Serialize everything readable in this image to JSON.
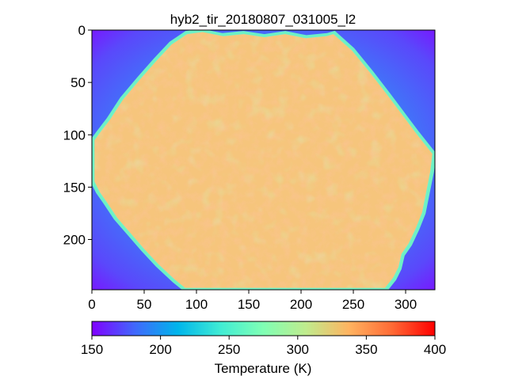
{
  "chart_data": {
    "type": "heatmap",
    "title": "hyb2_tir_20180807_031005_l2",
    "xlabel": "",
    "ylabel": "",
    "x_ticks": [
      0,
      50,
      100,
      150,
      200,
      250,
      300
    ],
    "y_ticks": [
      0,
      50,
      100,
      150,
      200
    ],
    "xlim": [
      0,
      328
    ],
    "ylim": [
      248,
      0
    ],
    "colormap": "rainbow",
    "colorbar": {
      "label": "Temperature (K)",
      "range": [
        150,
        400
      ],
      "ticks": [
        150,
        200,
        250,
        300,
        350,
        400
      ],
      "orientation": "horizontal",
      "placement": "bottom"
    },
    "background_temperature_center": 225,
    "background_temperature_corner": 160,
    "asteroid_temperature_typical": 325,
    "asteroid_outline": [
      [
        90,
        2
      ],
      [
        105,
        0
      ],
      [
        125,
        4
      ],
      [
        145,
        2
      ],
      [
        165,
        5
      ],
      [
        185,
        2
      ],
      [
        205,
        6
      ],
      [
        225,
        4
      ],
      [
        232,
        2
      ],
      [
        250,
        18
      ],
      [
        268,
        40
      ],
      [
        285,
        62
      ],
      [
        300,
        82
      ],
      [
        312,
        98
      ],
      [
        320,
        108
      ],
      [
        328,
        118
      ],
      [
        326,
        135
      ],
      [
        322,
        155
      ],
      [
        318,
        175
      ],
      [
        312,
        190
      ],
      [
        305,
        205
      ],
      [
        298,
        215
      ],
      [
        295,
        228
      ],
      [
        290,
        238
      ],
      [
        282,
        248
      ],
      [
        260,
        248
      ],
      [
        240,
        248
      ],
      [
        225,
        248
      ],
      [
        205,
        248
      ],
      [
        185,
        248
      ],
      [
        165,
        248
      ],
      [
        145,
        248
      ],
      [
        125,
        248
      ],
      [
        105,
        248
      ],
      [
        88,
        248
      ],
      [
        78,
        240
      ],
      [
        62,
        225
      ],
      [
        48,
        210
      ],
      [
        35,
        195
      ],
      [
        22,
        180
      ],
      [
        12,
        165
      ],
      [
        5,
        155
      ],
      [
        0,
        145
      ],
      [
        0,
        125
      ],
      [
        0,
        105
      ],
      [
        5,
        98
      ],
      [
        15,
        85
      ],
      [
        28,
        65
      ],
      [
        45,
        45
      ],
      [
        60,
        28
      ],
      [
        75,
        12
      ]
    ]
  }
}
